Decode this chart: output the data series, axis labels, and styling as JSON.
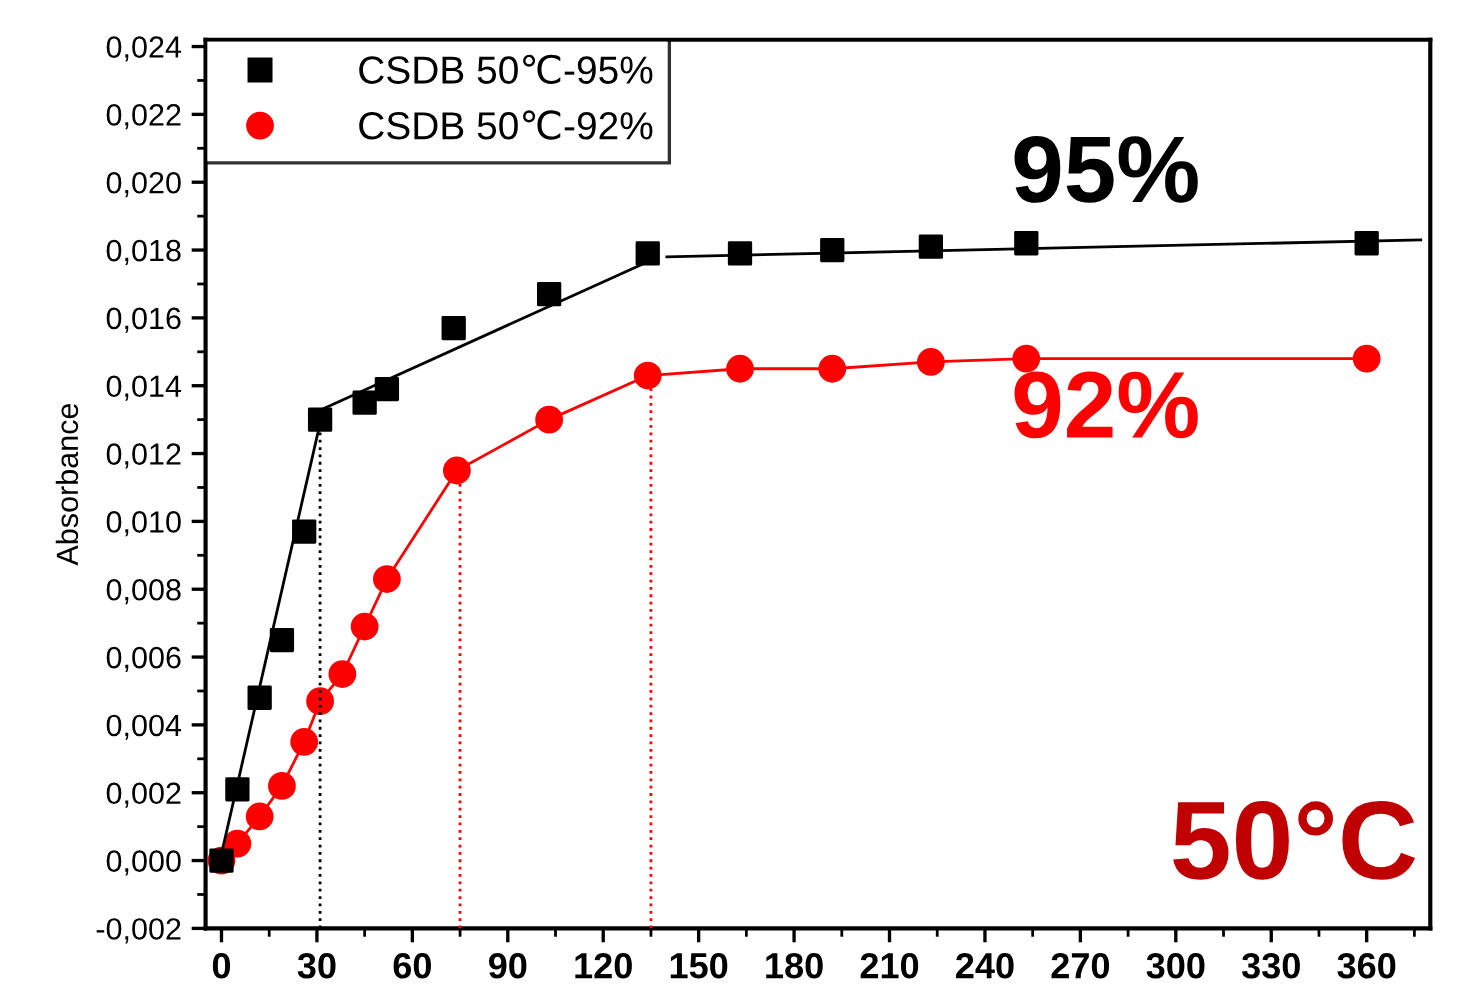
{
  "chart_data": {
    "type": "scatter",
    "ylabel": "Absorbance",
    "xlim": [
      -5,
      380
    ],
    "ylim": [
      -0.002,
      0.0242
    ],
    "xticks": [
      0,
      30,
      60,
      90,
      120,
      150,
      180,
      210,
      240,
      270,
      300,
      330,
      360
    ],
    "yticks": [
      {
        "value": -0.002,
        "label": "-0,002"
      },
      {
        "value": 0,
        "label": "0,000"
      },
      {
        "value": 0.002,
        "label": "0,002"
      },
      {
        "value": 0.004,
        "label": "0,004"
      },
      {
        "value": 0.006,
        "label": "0,006"
      },
      {
        "value": 0.008,
        "label": "0,008"
      },
      {
        "value": 0.01,
        "label": "0,010"
      },
      {
        "value": 0.012,
        "label": "0,012"
      },
      {
        "value": 0.014,
        "label": "0,014"
      },
      {
        "value": 0.016,
        "label": "0,016"
      },
      {
        "value": 0.018,
        "label": "0,018"
      },
      {
        "value": 0.02,
        "label": "0,020"
      },
      {
        "value": 0.022,
        "label": "0,022"
      },
      {
        "value": 0.024,
        "label": "0,024"
      }
    ],
    "grid": false,
    "legend": "top left",
    "series": [
      {
        "name": "CSDB 50℃-95%",
        "marker": "square",
        "color": "#000000",
        "x": [
          0,
          5,
          12,
          19,
          26,
          31,
          45,
          52,
          73,
          103,
          134,
          163,
          192,
          223,
          253,
          360
        ],
        "values": [
          0,
          0.0021,
          0.0048,
          0.0065,
          0.0097,
          0.013,
          0.0135,
          0.0139,
          0.0157,
          0.0167,
          0.0179,
          0.0179,
          0.018,
          0.0181,
          0.0182,
          0.0182
        ]
      },
      {
        "name": "CSDB 50℃-92%",
        "type": "line",
        "marker": "circle",
        "line_style": "solid",
        "color": "#ff0000",
        "x": [
          0,
          5,
          12,
          19,
          26,
          31,
          38,
          45,
          52,
          74,
          103,
          134,
          163,
          192,
          223,
          253,
          360
        ],
        "values": [
          0,
          0.0005,
          0.0013,
          0.0022,
          0.0035,
          0.0047,
          0.0055,
          0.0069,
          0.0083,
          0.0115,
          0.013,
          0.0143,
          0.0145,
          0.0145,
          0.0147,
          0.0148,
          0.0148
        ]
      },
      {
        "type": "line",
        "marker": "none",
        "line_style": "solid",
        "color": "#000000",
        "x": [
          0,
          31.5
        ],
        "values": [
          0.0002,
          0.0131
        ]
      },
      {
        "type": "line",
        "marker": "none",
        "line_style": "solid",
        "color": "#000000",
        "x": [
          31.5,
          135
        ],
        "values": [
          0.0133,
          0.0177
        ]
      },
      {
        "type": "line",
        "marker": "none",
        "line_style": "solid",
        "color": "#000000",
        "x": [
          140,
          377
        ],
        "values": [
          0.0178,
          0.0183
        ]
      },
      {
        "type": "line",
        "marker": "none",
        "line_style": "dotted",
        "color": "#000000",
        "x": [
          31,
          31
        ],
        "values": [
          -0.002,
          0.013
        ]
      },
      {
        "type": "line",
        "marker": "none",
        "line_style": "dotted",
        "color": "#ff0000",
        "x": [
          75,
          75
        ],
        "values": [
          -0.002,
          0.0115
        ]
      },
      {
        "type": "line",
        "marker": "none",
        "line_style": "dotted",
        "color": "#ff0000",
        "x": [
          135,
          135
        ],
        "values": [
          -0.002,
          0.0143
        ]
      }
    ],
    "annotations": [
      "95%",
      "92%",
      "50°C"
    ]
  }
}
